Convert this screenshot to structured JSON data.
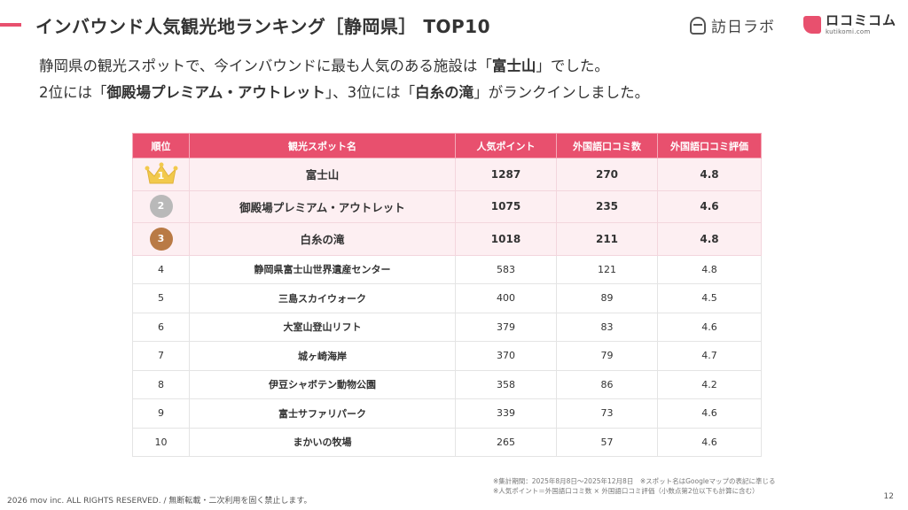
{
  "header": {
    "title": "インバウンド人気観光地ランキング［静岡県］ TOP10",
    "accent_color": "#e8506e",
    "logo_houmon_text": "訪日ラボ",
    "logo_kuchikomi_text": "ロコミコム",
    "logo_kuchikomi_sub": "kutikomi.com"
  },
  "intro": {
    "line1_before": "静岡県の観光スポットで、今インバウンドに最も人気のある施設は「",
    "line1_bold": "富士山",
    "line1_after": "」でした。",
    "line2_a": "2位には「",
    "line2_bold1": "御殿場プレミアム・アウトレット",
    "line2_b": "」、3位には「",
    "line2_bold2": "白糸の滝",
    "line2_c": "」がランクインしました。"
  },
  "table": {
    "headers": [
      "順位",
      "観光スポット名",
      "人気ポイント",
      "外国語口コミ数",
      "外国語口コミ評価"
    ],
    "rows": [
      {
        "rank": "1",
        "name": "富士山",
        "points": "1287",
        "reviews": "270",
        "rating": "4.8"
      },
      {
        "rank": "2",
        "name": "御殿場プレミアム・アウトレット",
        "points": "1075",
        "reviews": "235",
        "rating": "4.6"
      },
      {
        "rank": "3",
        "name": "白糸の滝",
        "points": "1018",
        "reviews": "211",
        "rating": "4.8"
      },
      {
        "rank": "4",
        "name": "静岡県富士山世界遺産センター",
        "points": "583",
        "reviews": "121",
        "rating": "4.8"
      },
      {
        "rank": "5",
        "name": "三島スカイウォーク",
        "points": "400",
        "reviews": "89",
        "rating": "4.5"
      },
      {
        "rank": "6",
        "name": "大室山登山リフト",
        "points": "379",
        "reviews": "83",
        "rating": "4.6"
      },
      {
        "rank": "7",
        "name": "城ヶ崎海岸",
        "points": "370",
        "reviews": "79",
        "rating": "4.7"
      },
      {
        "rank": "8",
        "name": "伊豆シャボテン動物公園",
        "points": "358",
        "reviews": "86",
        "rating": "4.2"
      },
      {
        "rank": "9",
        "name": "富士サファリパーク",
        "points": "339",
        "reviews": "73",
        "rating": "4.6"
      },
      {
        "rank": "10",
        "name": "まかいの牧場",
        "points": "265",
        "reviews": "57",
        "rating": "4.6"
      }
    ]
  },
  "notes": {
    "line1": "※集計期間：2025年8月8日〜2025年12月8日　※スポット名はGoogleマップの表記に準じる",
    "line2": "※人気ポイント＝外国語口コミ数 × 外国語口コミ評価（小数点第2位以下も計算に含む）"
  },
  "footer": {
    "copyright": "2026 mov inc. ALL RIGHTS RESERVED. / 無断転載・二次利用を固く禁止します。",
    "page_number": "12"
  }
}
